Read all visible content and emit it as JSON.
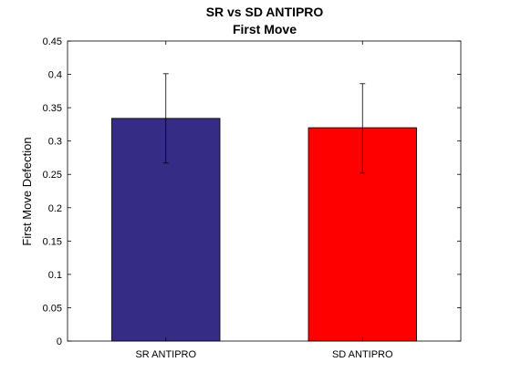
{
  "chart_data": {
    "type": "bar",
    "title": "SR vs SD ANTIPRO",
    "subtitle": "First Move",
    "xlabel": "",
    "ylabel": "First Move Defection",
    "categories": [
      "SR ANTIPRO",
      "SD ANTIPRO"
    ],
    "values": [
      0.334,
      0.32
    ],
    "error_low": [
      0.267,
      0.252
    ],
    "error_high": [
      0.401,
      0.386
    ],
    "ylim": [
      0,
      0.45
    ],
    "yticks": [
      0,
      0.05,
      0.1,
      0.15,
      0.2,
      0.25,
      0.3,
      0.35,
      0.4,
      0.45
    ],
    "ytick_labels": [
      "0",
      "0.05",
      "0.1",
      "0.15",
      "0.2",
      "0.25",
      "0.3",
      "0.35",
      "0.4",
      "0.45"
    ],
    "colors": [
      "#352c86",
      "#ff0000"
    ],
    "grid": false,
    "legend": "none"
  }
}
